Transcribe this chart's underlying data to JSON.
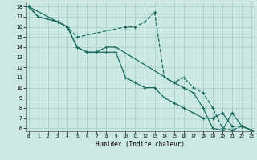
{
  "xlabel": "Humidex (Indice chaleur)",
  "xlim": [
    0,
    23
  ],
  "ylim": [
    6,
    18
  ],
  "xticks": [
    0,
    1,
    2,
    3,
    4,
    5,
    6,
    7,
    8,
    9,
    10,
    11,
    12,
    13,
    14,
    15,
    16,
    17,
    18,
    19,
    20,
    21,
    22,
    23
  ],
  "yticks": [
    6,
    7,
    8,
    9,
    10,
    11,
    12,
    13,
    14,
    15,
    16,
    17,
    18
  ],
  "bg_color": "#cce8e3",
  "grid_color": "#aacfca",
  "line_color": "#1a6b5e",
  "line_dashed": [
    [
      0,
      18
    ],
    [
      1,
      17
    ],
    [
      3,
      16.5
    ],
    [
      4,
      16
    ],
    [
      5,
      15
    ],
    [
      10,
      16
    ],
    [
      11,
      16
    ],
    [
      12,
      16.5
    ],
    [
      13,
      17.5
    ],
    [
      14,
      11
    ],
    [
      15,
      10.5
    ],
    [
      16,
      11
    ],
    [
      17,
      10
    ],
    [
      18,
      9.5
    ],
    [
      19,
      8
    ],
    [
      20,
      6
    ],
    [
      21,
      5.8
    ],
    [
      22,
      6.2
    ],
    [
      23,
      5.8
    ]
  ],
  "line_solid1": [
    [
      0,
      18
    ],
    [
      3,
      16.5
    ],
    [
      4,
      16
    ],
    [
      5,
      14
    ],
    [
      6,
      13.5
    ],
    [
      7,
      13.5
    ],
    [
      8,
      13.5
    ],
    [
      9,
      13.5
    ],
    [
      10,
      11
    ],
    [
      11,
      10.5
    ],
    [
      12,
      10
    ],
    [
      13,
      10
    ],
    [
      14,
      9
    ],
    [
      15,
      8.5
    ],
    [
      16,
      8
    ],
    [
      17,
      7.5
    ],
    [
      18,
      7
    ],
    [
      19,
      7
    ],
    [
      20,
      7.5
    ],
    [
      21,
      6.2
    ],
    [
      22,
      6.2
    ],
    [
      23,
      5.8
    ]
  ],
  "line_solid2": [
    [
      0,
      18
    ],
    [
      1,
      17
    ],
    [
      3,
      16.5
    ],
    [
      4,
      16
    ],
    [
      5,
      14
    ],
    [
      6,
      13.5
    ],
    [
      7,
      13.5
    ],
    [
      8,
      14
    ],
    [
      9,
      14
    ],
    [
      15,
      10.5
    ],
    [
      16,
      10
    ],
    [
      17,
      9.5
    ],
    [
      18,
      8
    ],
    [
      19,
      6
    ],
    [
      20,
      5.8
    ],
    [
      21,
      7.5
    ],
    [
      22,
      6.2
    ],
    [
      23,
      5.8
    ]
  ]
}
